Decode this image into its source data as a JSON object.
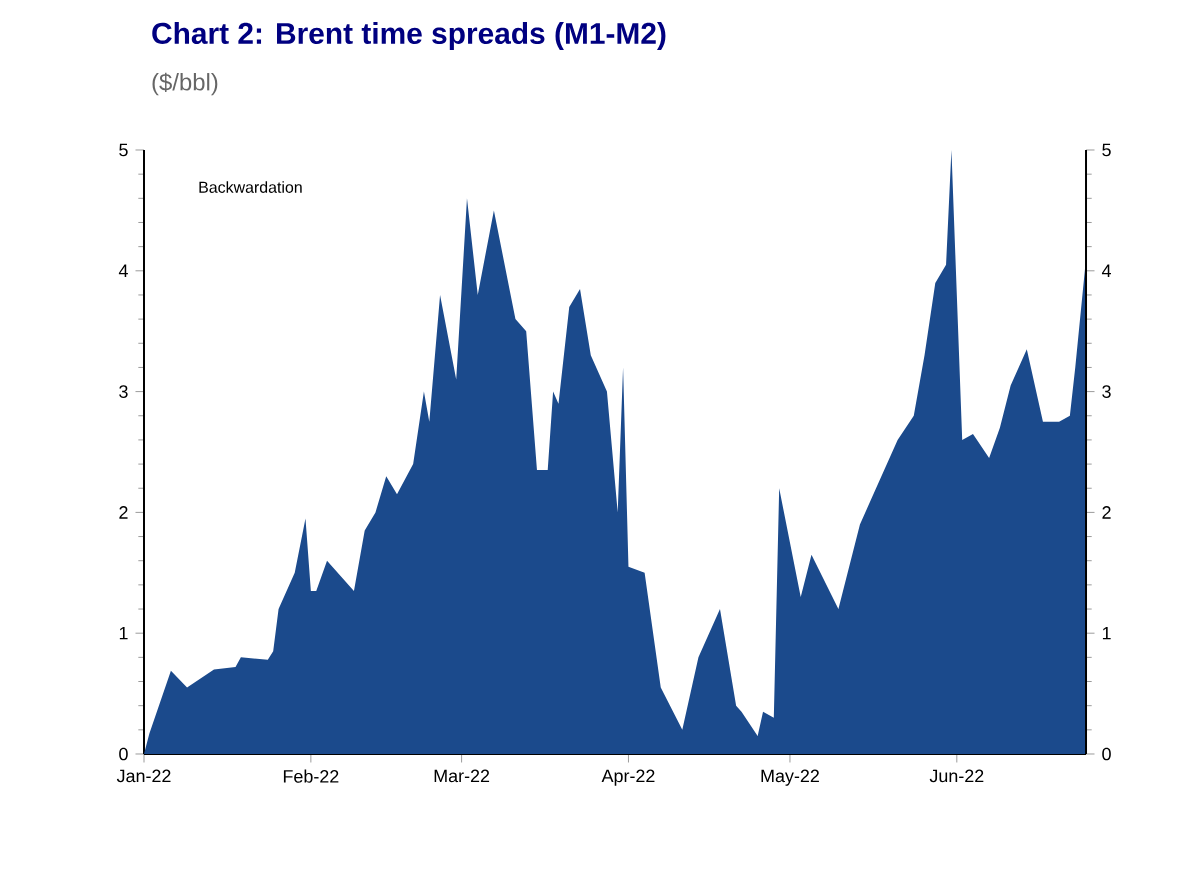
{
  "chart_data": {
    "type": "area",
    "title": "Chart 2: Brent time spreads (M1-M2)",
    "subtitle": "($/bbl)",
    "annotations": [
      "Backwardation"
    ],
    "x": [
      "2022-01-01",
      "2022-01-02",
      "2022-01-06",
      "2022-01-09",
      "2022-01-14",
      "2022-01-18",
      "2022-01-19",
      "2022-01-24",
      "2022-01-25",
      "2022-01-26",
      "2022-01-29",
      "2022-01-31",
      "2022-02-01",
      "2022-02-02",
      "2022-02-04",
      "2022-02-07",
      "2022-02-09",
      "2022-02-11",
      "2022-02-13",
      "2022-02-15",
      "2022-02-17",
      "2022-02-20",
      "2022-02-22",
      "2022-02-23",
      "2022-02-25",
      "2022-02-28",
      "2022-03-02",
      "2022-03-04",
      "2022-03-07",
      "2022-03-11",
      "2022-03-13",
      "2022-03-15",
      "2022-03-17",
      "2022-03-18",
      "2022-03-19",
      "2022-03-21",
      "2022-03-23",
      "2022-03-25",
      "2022-03-28",
      "2022-03-30",
      "2022-03-31",
      "2022-04-01",
      "2022-04-04",
      "2022-04-07",
      "2022-04-11",
      "2022-04-14",
      "2022-04-18",
      "2022-04-21",
      "2022-04-22",
      "2022-04-25",
      "2022-04-26",
      "2022-04-28",
      "2022-04-29",
      "2022-05-03",
      "2022-05-05",
      "2022-05-10",
      "2022-05-14",
      "2022-05-16",
      "2022-05-21",
      "2022-05-24",
      "2022-05-26",
      "2022-05-28",
      "2022-05-30",
      "2022-05-31",
      "2022-06-02",
      "2022-06-04",
      "2022-06-07",
      "2022-06-09",
      "2022-06-11",
      "2022-06-14",
      "2022-06-17",
      "2022-06-20",
      "2022-06-22",
      "2022-06-23",
      "2022-06-25"
    ],
    "series": [
      {
        "color": "#1b4a8c",
        "values": [
          0,
          0.17,
          0.69,
          0.55,
          0.7,
          0.72,
          0.8,
          0.78,
          0.85,
          1.2,
          1.5,
          1.95,
          1.35,
          1.35,
          1.6,
          1.45,
          1.35,
          1.85,
          2.0,
          2.3,
          2.15,
          2.4,
          3.0,
          2.75,
          3.8,
          3.1,
          4.6,
          3.8,
          4.5,
          3.6,
          3.5,
          2.35,
          2.35,
          3.0,
          2.9,
          3.7,
          3.85,
          3.3,
          3.0,
          2.0,
          3.2,
          1.55,
          1.5,
          0.55,
          0.2,
          0.8,
          1.2,
          0.4,
          0.35,
          0.15,
          0.35,
          0.3,
          2.2,
          1.3,
          1.65,
          1.2,
          1.9,
          2.1,
          2.6,
          2.8,
          3.3,
          3.9,
          4.05,
          5.0,
          2.6,
          2.65,
          2.45,
          2.7,
          3.05,
          3.35,
          2.75,
          2.75,
          2.8,
          3.2,
          4.1
        ]
      }
    ],
    "xlim": [
      "2022-01-01",
      "2022-06-25"
    ],
    "xticks": [
      {
        "value": "2022-01-01",
        "label": "Jan-22"
      },
      {
        "value": "2022-02-01",
        "label": "Feb-22"
      },
      {
        "value": "2022-03-01",
        "label": "Mar-22"
      },
      {
        "value": "2022-04-01",
        "label": "Apr-22"
      },
      {
        "value": "2022-05-01",
        "label": "May-22"
      },
      {
        "value": "2022-06-01",
        "label": "Jun-22"
      }
    ],
    "ylim": [
      0,
      5
    ],
    "yticks": [
      0,
      1,
      2,
      3,
      4,
      5
    ],
    "y2lim": [
      0,
      5
    ],
    "y2ticks": [
      0,
      1,
      2,
      3,
      4,
      5
    ],
    "grid": false
  }
}
